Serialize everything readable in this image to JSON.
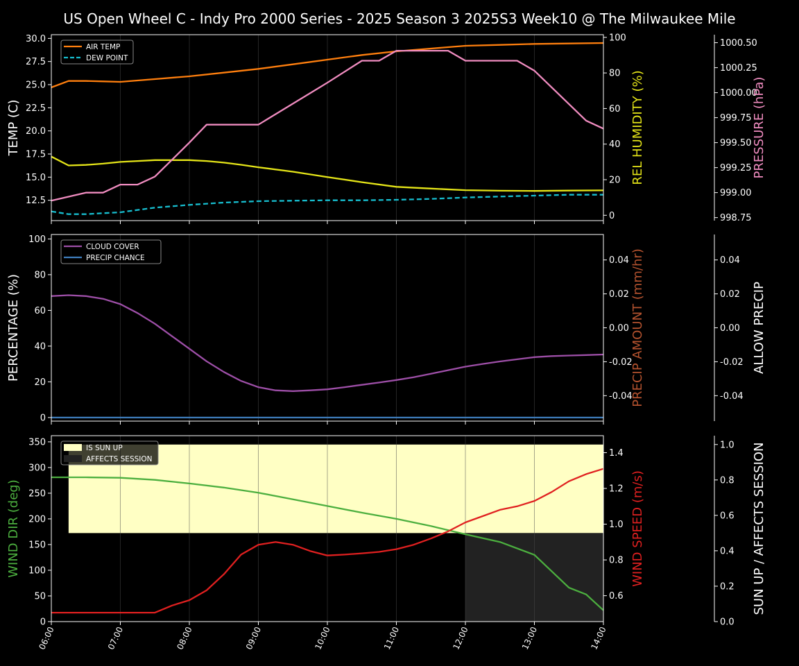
{
  "chart_data": [
    {
      "type": "line",
      "title": "US Open Wheel C - Indy Pro 2000 Series - 2025 Season 3 2025S3 Week10 @ The Milwaukee Mile",
      "x_ticks": [
        "06:00",
        "07:00",
        "08:00",
        "09:00",
        "10:00",
        "11:00",
        "12:00",
        "13:00",
        "14:00"
      ],
      "left_axis": {
        "label": "TEMP (C)",
        "ylim": [
          10.3,
          30.4
        ],
        "ticks": [
          12.5,
          15.0,
          17.5,
          20.0,
          22.5,
          25.0,
          27.5,
          30.0
        ],
        "color": "#ffffff"
      },
      "right_axis": {
        "label": "REL HUMIDITY (%)",
        "ylim": [
          -3,
          101.5
        ],
        "ticks": [
          0,
          20,
          40,
          60,
          80,
          100
        ],
        "color": "#e5e518"
      },
      "right_axis2": {
        "label": "PRESSURE (hPa)",
        "ylim": [
          998.72,
          1000.58
        ],
        "ticks": [
          998.75,
          999.0,
          999.25,
          999.5,
          999.75,
          1000.0,
          1000.25,
          1000.5
        ],
        "color": "#f08cc0"
      },
      "legend": [
        "AIR TEMP",
        "DEW POINT"
      ],
      "legend_position": "top-left",
      "series": [
        {
          "name": "AIR TEMP",
          "axis": "left",
          "color": "#ff7f0e",
          "dash": false,
          "x": [
            6,
            6.25,
            6.5,
            6.75,
            7,
            7.5,
            8,
            8.5,
            9,
            9.5,
            10,
            10.5,
            11,
            11.5,
            12,
            12.5,
            13,
            13.5,
            14
          ],
          "y": [
            24.7,
            25.4,
            25.4,
            25.35,
            25.3,
            25.6,
            25.9,
            26.3,
            26.7,
            27.2,
            27.7,
            28.2,
            28.6,
            28.9,
            29.2,
            29.3,
            29.4,
            29.45,
            29.5
          ]
        },
        {
          "name": "DEW POINT",
          "axis": "left",
          "color": "#17becf",
          "dash": true,
          "x": [
            6,
            6.25,
            6.5,
            6.75,
            7,
            7.5,
            8,
            8.5,
            9,
            9.5,
            10,
            10.5,
            11,
            11.5,
            12,
            12.5,
            13,
            13.5,
            14
          ],
          "y": [
            11.3,
            11.0,
            11.0,
            11.1,
            11.2,
            11.7,
            12.0,
            12.25,
            12.4,
            12.45,
            12.5,
            12.5,
            12.55,
            12.65,
            12.8,
            12.9,
            13.0,
            13.1,
            13.1
          ]
        },
        {
          "name": "REL HUMIDITY",
          "axis": "right",
          "color": "#e5e518",
          "dash": false,
          "x": [
            6,
            6.25,
            6.5,
            6.75,
            7,
            7.25,
            7.5,
            7.75,
            8,
            8.25,
            8.5,
            8.75,
            9,
            9.5,
            10,
            10.5,
            11,
            11.5,
            12,
            12.5,
            13,
            13.5,
            14
          ],
          "y": [
            33,
            28,
            28.3,
            29,
            30,
            30.5,
            31,
            31,
            31,
            30.5,
            29.6,
            28.4,
            27,
            24.5,
            21.5,
            18.6,
            16,
            15,
            14.1,
            13.8,
            13.7,
            13.9,
            14
          ]
        },
        {
          "name": "PRESSURE",
          "axis": "right2",
          "color": "#f08cc0",
          "dash": false,
          "x": [
            6,
            6.5,
            6.75,
            7,
            7.25,
            7.5,
            8,
            8.25,
            8.75,
            9,
            10,
            10.5,
            10.75,
            11,
            11.75,
            12,
            12.75,
            13,
            13.75,
            14
          ],
          "y": [
            998.92,
            999.0,
            999.0,
            999.08,
            999.08,
            999.16,
            999.5,
            999.68,
            999.68,
            999.68,
            1000.1,
            1000.32,
            1000.32,
            1000.42,
            1000.42,
            1000.32,
            1000.32,
            1000.22,
            999.72,
            999.64
          ]
        }
      ]
    },
    {
      "type": "line",
      "left_axis": {
        "label": "PERCENTAGE (%)",
        "ylim": [
          -2,
          102.5
        ],
        "ticks": [
          0,
          20,
          40,
          60,
          80,
          100
        ],
        "color": "#ffffff"
      },
      "right_axis": {
        "label": "PRECIP AMOUNT (mm/hr)",
        "ylim": [
          -0.055,
          0.055
        ],
        "ticks": [
          -0.04,
          -0.02,
          0.0,
          0.02,
          0.04
        ],
        "color": "#b5532f"
      },
      "right_axis2": {
        "label": "ALLOW PRECIP",
        "ylim": [
          -0.055,
          0.055
        ],
        "ticks": [
          -0.04,
          -0.02,
          0.0,
          0.02,
          0.04
        ],
        "color": "#ffffff"
      },
      "legend": [
        "CLOUD COVER",
        "PRECIP CHANCE"
      ],
      "legend_position": "top-left",
      "series": [
        {
          "name": "CLOUD COVER",
          "axis": "left",
          "color": "#9e4fa8",
          "dash": false,
          "x": [
            6,
            6.25,
            6.5,
            6.75,
            7,
            7.25,
            7.5,
            7.75,
            8,
            8.25,
            8.5,
            8.75,
            9,
            9.25,
            9.5,
            9.75,
            10,
            10.25,
            10.5,
            10.75,
            11,
            11.25,
            11.5,
            11.75,
            12,
            12.25,
            12.5,
            12.75,
            13,
            13.25,
            13.5,
            13.75,
            14
          ],
          "y": [
            68,
            68.5,
            68,
            66.5,
            63.5,
            58.5,
            52.5,
            45.5,
            38.5,
            31.5,
            25.5,
            20.5,
            17,
            15.2,
            14.8,
            15.2,
            15.8,
            17,
            18.3,
            19.6,
            21,
            22.6,
            24.5,
            26.5,
            28.5,
            30,
            31.4,
            32.6,
            33.8,
            34.4,
            34.7,
            35,
            35.3
          ]
        },
        {
          "name": "PRECIP CHANCE",
          "axis": "left",
          "color": "#3f7fbf",
          "dash": false,
          "x": [
            6,
            14
          ],
          "y": [
            0,
            0
          ]
        }
      ]
    },
    {
      "type": "line",
      "left_axis": {
        "label": "WIND DIR (deg)",
        "ylim": [
          0,
          362
        ],
        "ticks": [
          0,
          50,
          100,
          150,
          200,
          250,
          300,
          350
        ],
        "color": "#4caf3f"
      },
      "right_axis": {
        "label": "WIND SPEED (m/s)",
        "ylim": [
          0.455,
          1.495
        ],
        "ticks": [
          0.6,
          0.8,
          1.0,
          1.2,
          1.4
        ],
        "color": "#e02020"
      },
      "right_axis2": {
        "label": "SUN UP / AFFECTS SESSION",
        "ylim": [
          0,
          1.05
        ],
        "ticks": [
          0.0,
          0.2,
          0.4,
          0.6,
          0.8,
          1.0
        ],
        "color": "#ffffff"
      },
      "legend": [
        "IS SUN UP",
        "AFFECTS SESSION"
      ],
      "legend_position": "top-left",
      "bands": [
        {
          "name": "IS SUN UP",
          "color": "#ffffc4",
          "x0": 6.25,
          "x1": 14,
          "y0": 0.5,
          "y1": 1.0
        },
        {
          "name": "AFFECTS SESSION",
          "color": "#222222",
          "x0": 12,
          "x1": 14,
          "y0": 0,
          "y1": 0.5
        }
      ],
      "series": [
        {
          "name": "WIND DIR",
          "axis": "left",
          "color": "#4caf3f",
          "dash": false,
          "x": [
            6,
            6.5,
            7,
            7.5,
            8,
            8.5,
            9,
            9.5,
            10,
            10.5,
            11,
            11.5,
            12,
            12.5,
            13,
            13.25,
            13.5,
            13.75,
            14
          ],
          "y": [
            281,
            281,
            280,
            276,
            269,
            261,
            251,
            238,
            225,
            212,
            200,
            186,
            170,
            155,
            130,
            98,
            66,
            53,
            22
          ]
        },
        {
          "name": "WIND SPEED",
          "axis": "right",
          "color": "#e02020",
          "dash": false,
          "x": [
            6,
            6.5,
            7,
            7.5,
            7.75,
            8,
            8.25,
            8.5,
            8.75,
            9,
            9.25,
            9.5,
            9.75,
            10,
            10.25,
            10.5,
            10.75,
            11,
            11.25,
            11.5,
            11.75,
            12,
            12.25,
            12.5,
            12.75,
            13,
            13.25,
            13.5,
            13.75,
            14
          ],
          "y": [
            0.505,
            0.505,
            0.505,
            0.505,
            0.545,
            0.575,
            0.63,
            0.72,
            0.83,
            0.885,
            0.9,
            0.885,
            0.85,
            0.825,
            0.83,
            0.837,
            0.845,
            0.86,
            0.885,
            0.92,
            0.96,
            1.01,
            1.045,
            1.08,
            1.1,
            1.13,
            1.18,
            1.24,
            1.28,
            1.31
          ]
        }
      ]
    }
  ]
}
